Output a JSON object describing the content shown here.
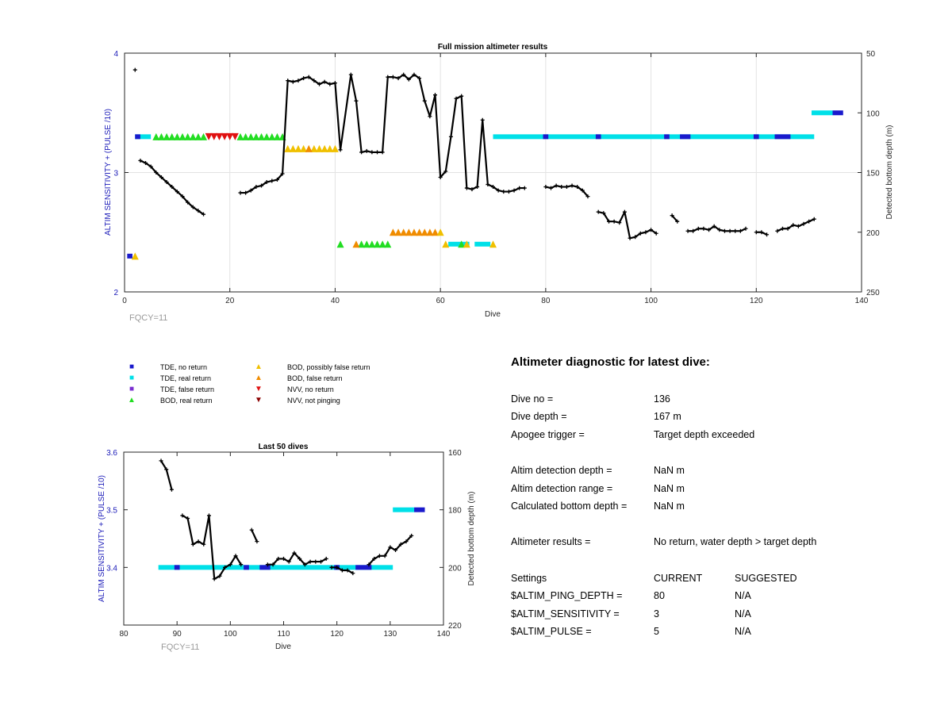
{
  "chart_data": [
    {
      "type": "line",
      "title": "Full mission altimeter results",
      "xlabel": "Dive",
      "ylabel": "ALTIM SENSITIVITY + (PULSE /10)",
      "y2label": "Detected bottom depth (m)",
      "xlim": [
        0,
        140
      ],
      "ylim": [
        2,
        4
      ],
      "y2lim_reversed": [
        50,
        250
      ],
      "xticks": [
        "0",
        "20",
        "40",
        "60",
        "80",
        "100",
        "120",
        "140"
      ],
      "yticks": [
        "2",
        "3",
        "4"
      ],
      "y2ticks": [
        "50",
        "100",
        "150",
        "200",
        "250"
      ],
      "grid": true,
      "annotation": "FQCY=11",
      "bottom_depth_segments": [
        [
          [
            2,
            64
          ]
        ],
        [
          [
            3,
            140
          ],
          [
            4,
            142
          ],
          [
            5,
            145
          ],
          [
            6,
            150
          ],
          [
            7,
            154
          ],
          [
            8,
            158
          ],
          [
            9,
            162
          ],
          [
            10,
            166
          ],
          [
            11,
            170
          ],
          [
            12,
            175
          ],
          [
            13,
            179
          ],
          [
            14,
            182
          ],
          [
            15,
            185
          ]
        ],
        [
          [
            22,
            167
          ],
          [
            23,
            167
          ],
          [
            24,
            165
          ],
          [
            25,
            162
          ],
          [
            26,
            161
          ],
          [
            27,
            158
          ],
          [
            28,
            157
          ],
          [
            29,
            156
          ],
          [
            30,
            151
          ],
          [
            31,
            73
          ],
          [
            32,
            74
          ],
          [
            33,
            73
          ],
          [
            34,
            71
          ],
          [
            35,
            70
          ],
          [
            36,
            73
          ],
          [
            37,
            76
          ],
          [
            38,
            74
          ],
          [
            39,
            76
          ],
          [
            40,
            75
          ],
          [
            41,
            131
          ],
          [
            43,
            68
          ],
          [
            44,
            90
          ],
          [
            45,
            133
          ],
          [
            46,
            132
          ],
          [
            47,
            133
          ],
          [
            48,
            133
          ],
          [
            49,
            133
          ],
          [
            50,
            70
          ],
          [
            51,
            70
          ],
          [
            52,
            71
          ],
          [
            53,
            68
          ],
          [
            54,
            72
          ],
          [
            55,
            68
          ],
          [
            56,
            71
          ],
          [
            57,
            90
          ],
          [
            58,
            103
          ],
          [
            59,
            85
          ],
          [
            60,
            154
          ],
          [
            61,
            149
          ],
          [
            62,
            120
          ],
          [
            63,
            88
          ],
          [
            64,
            86
          ],
          [
            65,
            163
          ],
          [
            66,
            164
          ],
          [
            67,
            162
          ],
          [
            68,
            106
          ],
          [
            69,
            160
          ],
          [
            70,
            162
          ],
          [
            71,
            165
          ],
          [
            72,
            166
          ],
          [
            73,
            166
          ],
          [
            74,
            165
          ],
          [
            75,
            163
          ],
          [
            76,
            163
          ]
        ],
        [
          [
            80,
            162
          ],
          [
            81,
            163
          ],
          [
            82,
            161
          ],
          [
            83,
            162
          ],
          [
            84,
            162
          ],
          [
            85,
            161
          ],
          [
            86,
            162
          ],
          [
            87,
            165
          ],
          [
            88,
            170
          ]
        ],
        [
          [
            90,
            183
          ],
          [
            91,
            184
          ],
          [
            92,
            191
          ],
          [
            93,
            191
          ],
          [
            94,
            192
          ],
          [
            95,
            183
          ],
          [
            96,
            205
          ],
          [
            97,
            204
          ],
          [
            98,
            201
          ],
          [
            99,
            200
          ],
          [
            100,
            198
          ],
          [
            101,
            201
          ]
        ],
        [
          [
            104,
            186
          ],
          [
            105,
            191
          ]
        ],
        [
          [
            107,
            199
          ],
          [
            108,
            199
          ],
          [
            109,
            197
          ],
          [
            110,
            197
          ],
          [
            111,
            198
          ],
          [
            112,
            195
          ],
          [
            113,
            198
          ],
          [
            114,
            199
          ],
          [
            115,
            199
          ],
          [
            116,
            199
          ],
          [
            117,
            199
          ],
          [
            118,
            197
          ]
        ],
        [
          [
            120,
            200
          ],
          [
            121,
            200
          ],
          [
            122,
            202
          ]
        ],
        [
          [
            124,
            199
          ],
          [
            125,
            197
          ],
          [
            126,
            197
          ],
          [
            127,
            194
          ],
          [
            128,
            195
          ],
          [
            129,
            193
          ],
          [
            130,
            191
          ],
          [
            131,
            189
          ]
        ]
      ],
      "status_bars": [
        {
          "y": 3.3,
          "color": "#00e0e8",
          "x0": 2,
          "x1": 5
        },
        {
          "y": 3.3,
          "color": "#1a1acc",
          "x0": 2,
          "x1": 3
        },
        {
          "y": 3.3,
          "color": "#00e0e8",
          "x0": 70,
          "x1": 131
        },
        {
          "y": 3.3,
          "color": "#1a1acc",
          "x0": 79.5,
          "x1": 80.5
        },
        {
          "y": 3.3,
          "color": "#1a1acc",
          "x0": 89.5,
          "x1": 90.5
        },
        {
          "y": 3.3,
          "color": "#1a1acc",
          "x0": 102.5,
          "x1": 103.5
        },
        {
          "y": 3.3,
          "color": "#1a1acc",
          "x0": 105.5,
          "x1": 107.5
        },
        {
          "y": 3.3,
          "color": "#1a1acc",
          "x0": 119.5,
          "x1": 120.5
        },
        {
          "y": 3.3,
          "color": "#1a1acc",
          "x0": 123.5,
          "x1": 126.5
        },
        {
          "y": 3.5,
          "color": "#00e0e8",
          "x0": 130.5,
          "x1": 134.5
        },
        {
          "y": 3.5,
          "color": "#1a1acc",
          "x0": 134.5,
          "x1": 136.5
        },
        {
          "y": 2.3,
          "color": "#1a1acc",
          "x0": 0.5,
          "x1": 1.5
        },
        {
          "y": 2.4,
          "color": "#00e0e8",
          "x0": 61.5,
          "x1": 65.5
        },
        {
          "y": 2.4,
          "color": "#00e0e8",
          "x0": 66.5,
          "x1": 69.5
        }
      ],
      "markers": [
        {
          "y": 2.3,
          "x": [
            2
          ],
          "kind": "BOD, possibly false return"
        },
        {
          "y": 3.3,
          "x": [
            6,
            7,
            8,
            9,
            10,
            11,
            12,
            13,
            14,
            15,
            22,
            23,
            24,
            25,
            26,
            27,
            28,
            29,
            30
          ],
          "kind": "BOD, real return"
        },
        {
          "y": 3.3,
          "x": [
            16,
            17,
            18,
            19,
            20,
            21
          ],
          "kind": "NVV, no return"
        },
        {
          "y": 3.2,
          "x": [
            31,
            32,
            33,
            34,
            36,
            37,
            38,
            39,
            40
          ],
          "kind": "BOD, possibly false return"
        },
        {
          "y": 3.2,
          "x": [
            35
          ],
          "kind": "BOD, false return"
        },
        {
          "y": 2.4,
          "x": [
            41,
            45,
            46,
            47,
            48,
            49,
            50,
            64
          ],
          "kind": "BOD, real return"
        },
        {
          "y": 2.4,
          "x": [
            44
          ],
          "kind": "BOD, false return"
        },
        {
          "y": 2.4,
          "x": [
            61,
            65,
            70
          ],
          "kind": "BOD, possibly false return"
        },
        {
          "y": 2.5,
          "x": [
            51,
            52,
            53,
            54,
            55,
            56,
            57,
            58,
            59
          ],
          "kind": "BOD, false return"
        },
        {
          "y": 2.5,
          "x": [
            60
          ],
          "kind": "BOD, possibly false return"
        }
      ]
    },
    {
      "type": "line",
      "title": "Last 50 dives",
      "xlabel": "Dive",
      "ylabel": "ALTIM SENSITIVITY + (PULSE /10)",
      "y2label": "Detected bottom depth (m)",
      "xlim": [
        80,
        140
      ],
      "ylim": [
        3.3,
        3.6
      ],
      "y2lim_reversed": [
        160,
        220
      ],
      "xticks": [
        "80",
        "90",
        "100",
        "110",
        "120",
        "130",
        "140"
      ],
      "yticks": [
        "3.4",
        "3.5",
        "3.6"
      ],
      "y2ticks": [
        "160",
        "180",
        "200",
        "220"
      ],
      "grid": false,
      "annotation": "FQCY=11",
      "bottom_depth_segments": [
        [
          [
            87,
            163
          ],
          [
            88,
            166
          ],
          [
            89,
            173
          ]
        ],
        [
          [
            91,
            182
          ],
          [
            92,
            183
          ],
          [
            93,
            192
          ],
          [
            94,
            191
          ],
          [
            95,
            192
          ],
          [
            96,
            182
          ],
          [
            97,
            204
          ],
          [
            98,
            203
          ],
          [
            99,
            200
          ],
          [
            100,
            199
          ],
          [
            101,
            196
          ],
          [
            102,
            199
          ]
        ],
        [
          [
            104,
            187
          ],
          [
            105,
            191
          ]
        ],
        [
          [
            107,
            199
          ],
          [
            108,
            199
          ],
          [
            109,
            197
          ],
          [
            110,
            197
          ],
          [
            111,
            198
          ],
          [
            112,
            195
          ],
          [
            113,
            197
          ],
          [
            114,
            199
          ],
          [
            115,
            198
          ],
          [
            116,
            198
          ],
          [
            117,
            198
          ],
          [
            118,
            197
          ]
        ],
        [
          [
            119,
            200
          ],
          [
            120,
            200
          ],
          [
            121,
            201
          ],
          [
            122,
            201
          ],
          [
            123,
            202
          ]
        ],
        [
          [
            126,
            199
          ],
          [
            127,
            197
          ],
          [
            128,
            196
          ],
          [
            129,
            196
          ],
          [
            130,
            193
          ],
          [
            131,
            194
          ],
          [
            132,
            192
          ],
          [
            133,
            191
          ],
          [
            134,
            189
          ]
        ]
      ],
      "status_bars": [
        {
          "y": 3.4,
          "color": "#00e0e8",
          "x0": 86.5,
          "x1": 130.5
        },
        {
          "y": 3.4,
          "color": "#1a1acc",
          "x0": 89.5,
          "x1": 90.5
        },
        {
          "y": 3.4,
          "color": "#1a1acc",
          "x0": 102.5,
          "x1": 103.5
        },
        {
          "y": 3.4,
          "color": "#1a1acc",
          "x0": 105.5,
          "x1": 107.5
        },
        {
          "y": 3.4,
          "color": "#1a1acc",
          "x0": 119.5,
          "x1": 120.5
        },
        {
          "y": 3.4,
          "color": "#1a1acc",
          "x0": 123.5,
          "x1": 126.5
        },
        {
          "y": 3.5,
          "color": "#00e0e8",
          "x0": 130.5,
          "x1": 134.5
        },
        {
          "y": 3.5,
          "color": "#1a1acc",
          "x0": 134.5,
          "x1": 136.5
        }
      ],
      "markers": []
    }
  ],
  "legend": {
    "items": [
      {
        "label": "TDE, no return",
        "symbol": "■",
        "color": "#1a1acc"
      },
      {
        "label": "TDE, real return",
        "symbol": "■",
        "color": "#00e0e8"
      },
      {
        "label": "TDE, false return",
        "symbol": "■",
        "color": "#7a2fd0"
      },
      {
        "label": "BOD, real return",
        "symbol": "▲",
        "color": "#22dd22"
      },
      {
        "label": "BOD, possibly false return",
        "symbol": "▲",
        "color": "#f0c000"
      },
      {
        "label": "BOD, false return",
        "symbol": "▲",
        "color": "#f08c00"
      },
      {
        "label": "NVV, no return",
        "symbol": "▼",
        "color": "#e01010"
      },
      {
        "label": "NVV, not pinging",
        "symbol": "▼",
        "color": "#8b0000"
      }
    ]
  },
  "diagnostic": {
    "title": "Altimeter diagnostic for latest dive:",
    "dive_no_label": "Dive no =",
    "dive_no": "136",
    "dive_depth_label": "Dive depth =",
    "dive_depth": "167 m",
    "apogee_label": "Apogee trigger =",
    "apogee": "Target depth exceeded",
    "detect_depth_label": "Altim detection depth =",
    "detect_depth": "NaN m",
    "detect_range_label": "Altim detection range =",
    "detect_range": "NaN m",
    "calc_depth_label": "Calculated bottom depth =",
    "calc_depth": "NaN m",
    "results_label": "Altimeter results =",
    "results": "No return, water depth > target depth",
    "settings_label": "Settings",
    "current_label": "CURRENT",
    "suggested_label": "SUGGESTED",
    "ping_label": "$ALTIM_PING_DEPTH =",
    "ping_current": "80",
    "ping_suggested": "N/A",
    "sens_label": "$ALTIM_SENSITIVITY =",
    "sens_current": "3",
    "sens_suggested": "N/A",
    "pulse_label": "$ALTIM_PULSE =",
    "pulse_current": "5",
    "pulse_suggested": "N/A"
  },
  "colors": {
    "left_axis": "#1a1ab8",
    "tde_no_return": "#1a1acc",
    "tde_real_return": "#00e0e8",
    "bod_real_return": "#22dd22",
    "bod_possibly_false": "#f0c000",
    "bod_false": "#f08c00",
    "nvv_no_return": "#e01010",
    "depth_line": "#000000"
  }
}
